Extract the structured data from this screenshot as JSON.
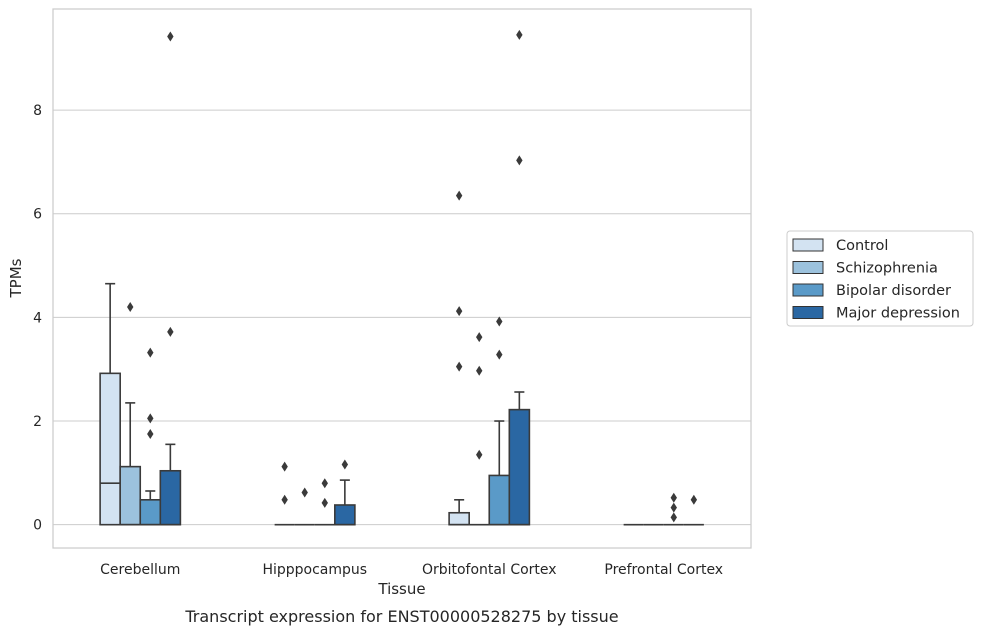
{
  "chart_data": {
    "type": "box",
    "caption": "Transcript expression for ENST00000528275 by tissue",
    "xlabel": "Tissue",
    "ylabel": "TPMs",
    "ylim": [
      -0.45,
      9.95
    ],
    "yticks": [
      0,
      2,
      4,
      6,
      8
    ],
    "grid": true,
    "legend_position": "right",
    "categories": [
      "Cerebellum",
      "Hipppocampus",
      "Orbitofontal Cortex",
      "Prefrontal Cortex"
    ],
    "series": [
      {
        "name": "Control",
        "color": "#d3e3f2",
        "boxes": [
          {
            "q1": 0,
            "median": 0.8,
            "q3": 2.92,
            "whisker_low": 0,
            "whisker_high": 4.65,
            "outliers": []
          },
          {
            "q1": 0,
            "median": 0,
            "q3": 0,
            "whisker_low": 0,
            "whisker_high": 0,
            "outliers": [
              1.12,
              0.48
            ]
          },
          {
            "q1": 0,
            "median": 0,
            "q3": 0.23,
            "whisker_low": 0,
            "whisker_high": 0.48,
            "outliers": [
              6.35,
              4.12,
              3.05
            ]
          },
          {
            "q1": 0,
            "median": 0,
            "q3": 0,
            "whisker_low": 0,
            "whisker_high": 0,
            "outliers": []
          }
        ]
      },
      {
        "name": "Schizophrenia",
        "color": "#9cc2dd",
        "boxes": [
          {
            "q1": 0,
            "median": 0,
            "q3": 1.12,
            "whisker_low": 0,
            "whisker_high": 2.35,
            "outliers": [
              4.2
            ]
          },
          {
            "q1": 0,
            "median": 0,
            "q3": 0,
            "whisker_low": 0,
            "whisker_high": 0,
            "outliers": [
              0.62
            ]
          },
          {
            "q1": 0,
            "median": 0,
            "q3": 0,
            "whisker_low": 0,
            "whisker_high": 0,
            "outliers": [
              3.62,
              2.97,
              1.35
            ]
          },
          {
            "q1": 0,
            "median": 0,
            "q3": 0,
            "whisker_low": 0,
            "whisker_high": 0,
            "outliers": []
          }
        ]
      },
      {
        "name": "Bipolar disorder",
        "color": "#5a9ac8",
        "boxes": [
          {
            "q1": 0,
            "median": 0,
            "q3": 0.48,
            "whisker_low": 0,
            "whisker_high": 0.65,
            "outliers": [
              3.32,
              2.05,
              1.75
            ]
          },
          {
            "q1": 0,
            "median": 0,
            "q3": 0,
            "whisker_low": 0,
            "whisker_high": 0,
            "outliers": [
              0.8,
              0.42
            ]
          },
          {
            "q1": 0,
            "median": 0,
            "q3": 0.95,
            "whisker_low": 0,
            "whisker_high": 2.0,
            "outliers": [
              3.92,
              3.28
            ]
          },
          {
            "q1": 0,
            "median": 0,
            "q3": 0,
            "whisker_low": 0,
            "whisker_high": 0,
            "outliers": [
              0.52,
              0.33,
              0.14
            ]
          }
        ]
      },
      {
        "name": "Major depression",
        "color": "#2a67a3",
        "boxes": [
          {
            "q1": 0,
            "median": 0,
            "q3": 1.04,
            "whisker_low": 0,
            "whisker_high": 1.55,
            "outliers": [
              9.42,
              3.72
            ]
          },
          {
            "q1": 0,
            "median": 0,
            "q3": 0.38,
            "whisker_low": 0,
            "whisker_high": 0.86,
            "outliers": [
              1.16
            ]
          },
          {
            "q1": 0,
            "median": 0,
            "q3": 2.22,
            "whisker_low": 0,
            "whisker_high": 2.56,
            "outliers": [
              9.45,
              7.03
            ]
          },
          {
            "q1": 0,
            "median": 0,
            "q3": 0,
            "whisker_low": 0,
            "whisker_high": 0,
            "outliers": [
              0.48
            ]
          }
        ]
      }
    ]
  }
}
